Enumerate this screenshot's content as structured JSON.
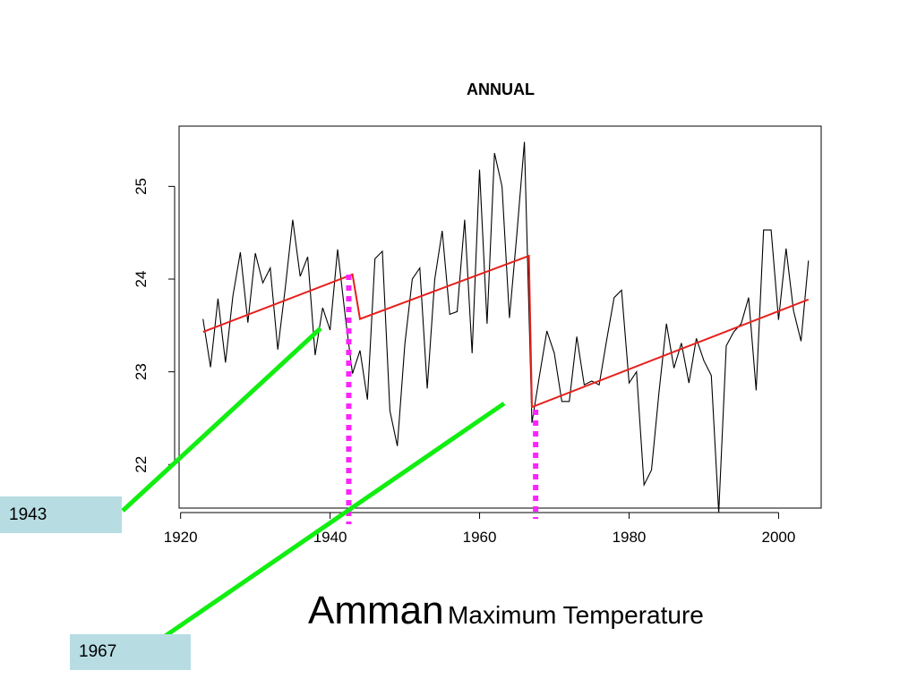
{
  "chart_data": {
    "type": "line",
    "title": "ANNUAL",
    "xlabel": "",
    "ylabel": "",
    "xlim": [
      1919.8,
      2005.7
    ],
    "ylim": [
      21.53,
      25.65
    ],
    "xticks": [
      "1920",
      "1940",
      "1960",
      "1980",
      "2000"
    ],
    "yticks": [
      "22",
      "23",
      "24",
      "25"
    ],
    "grid": false,
    "series": [
      {
        "color": "#000000",
        "x": [
          1923,
          1924,
          1925,
          1926,
          1927,
          1928,
          1929,
          1930,
          1931,
          1932,
          1933,
          1934,
          1935,
          1936,
          1937,
          1938,
          1939,
          1940,
          1941,
          1942,
          1943,
          1944,
          1945,
          1946,
          1947,
          1948,
          1949,
          1950,
          1951,
          1952,
          1953,
          1954,
          1955,
          1956,
          1957,
          1958,
          1959,
          1960,
          1961,
          1962,
          1963,
          1964,
          1965,
          1966,
          1967,
          1968,
          1969,
          1970,
          1971,
          1972,
          1973,
          1974,
          1975,
          1976,
          1977,
          1978,
          1979,
          1980,
          1981,
          1982,
          1983,
          1984,
          1985,
          1986,
          1987,
          1988,
          1989,
          1990,
          1991,
          1992,
          1993,
          1994,
          1995,
          1996,
          1997,
          1998,
          1999,
          2000,
          2001,
          2002,
          2003,
          2004
        ],
        "y": [
          23.57,
          23.05,
          23.79,
          23.1,
          23.82,
          24.29,
          23.53,
          24.28,
          23.96,
          24.12,
          23.24,
          23.9,
          24.64,
          24.03,
          24.24,
          23.18,
          23.69,
          23.45,
          24.32,
          23.62,
          22.98,
          23.23,
          22.7,
          24.22,
          24.3,
          22.58,
          22.2,
          23.3,
          24.0,
          24.12,
          22.82,
          24.0,
          24.52,
          23.62,
          23.65,
          24.64,
          23.2,
          25.18,
          23.52,
          25.36,
          25.0,
          23.58,
          24.5,
          25.48,
          22.45,
          22.95,
          23.44,
          23.2,
          22.68,
          22.68,
          23.38,
          22.86,
          22.9,
          22.86,
          23.34,
          23.8,
          23.88,
          22.88,
          23.0,
          21.78,
          21.94,
          22.78,
          23.52,
          23.04,
          23.31,
          22.88,
          23.36,
          23.12,
          22.96,
          21.48,
          23.28,
          23.43,
          23.52,
          23.8,
          22.8,
          24.53,
          24.53,
          23.56,
          24.33,
          23.66,
          23.33,
          24.2
        ]
      }
    ],
    "fitted_segments": [
      {
        "color": "#e8201c",
        "x": [
          1923,
          1943
        ],
        "y": [
          23.43,
          24.05
        ]
      },
      {
        "color": "#e8201c",
        "x": [
          1944,
          1966.6
        ],
        "y": [
          23.57,
          24.25
        ]
      },
      {
        "color": "#e8201c",
        "x": [
          1967,
          2004
        ],
        "y": [
          22.62,
          23.78
        ]
      }
    ],
    "breakpoints": [
      {
        "x": 1942.5,
        "label": "1943",
        "color": "#ff22ff"
      },
      {
        "x": 1967.5,
        "label": "1967",
        "color": "#ff22ff"
      }
    ],
    "annotations": [
      {
        "label": "1943",
        "color": "#11ee11"
      },
      {
        "label": "1967",
        "color": "#11ee11"
      }
    ],
    "caption": {
      "city": "Amman",
      "variable": "Maximum Temperature"
    }
  }
}
